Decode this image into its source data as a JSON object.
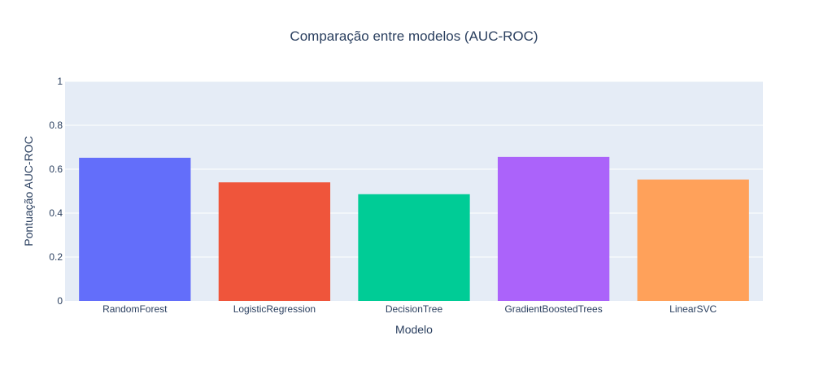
{
  "chart_data": {
    "type": "bar",
    "title": "Comparação entre modelos (AUC-ROC)",
    "xlabel": "Modelo",
    "ylabel": "Pontuação AUC-ROC",
    "categories": [
      "RandomForest",
      "LogisticRegression",
      "DecisionTree",
      "GradientBoostedTrees",
      "LinearSVC"
    ],
    "values": [
      0.652,
      0.54,
      0.486,
      0.656,
      0.553
    ],
    "colors": [
      "#636efa",
      "#ef553b",
      "#00cc96",
      "#ab63fa",
      "#ffa15a"
    ],
    "ylim": [
      0,
      1
    ],
    "yticks": [
      0,
      0.2,
      0.4,
      0.6,
      0.8,
      1
    ],
    "ytick_labels": [
      "0",
      "0.2",
      "0.4",
      "0.6",
      "0.8",
      "1"
    ],
    "grid": true,
    "legend": "none",
    "plot_background": "#e5ecf6",
    "gridline_color": "#ffffff",
    "text_color": "#2a3f5f"
  }
}
